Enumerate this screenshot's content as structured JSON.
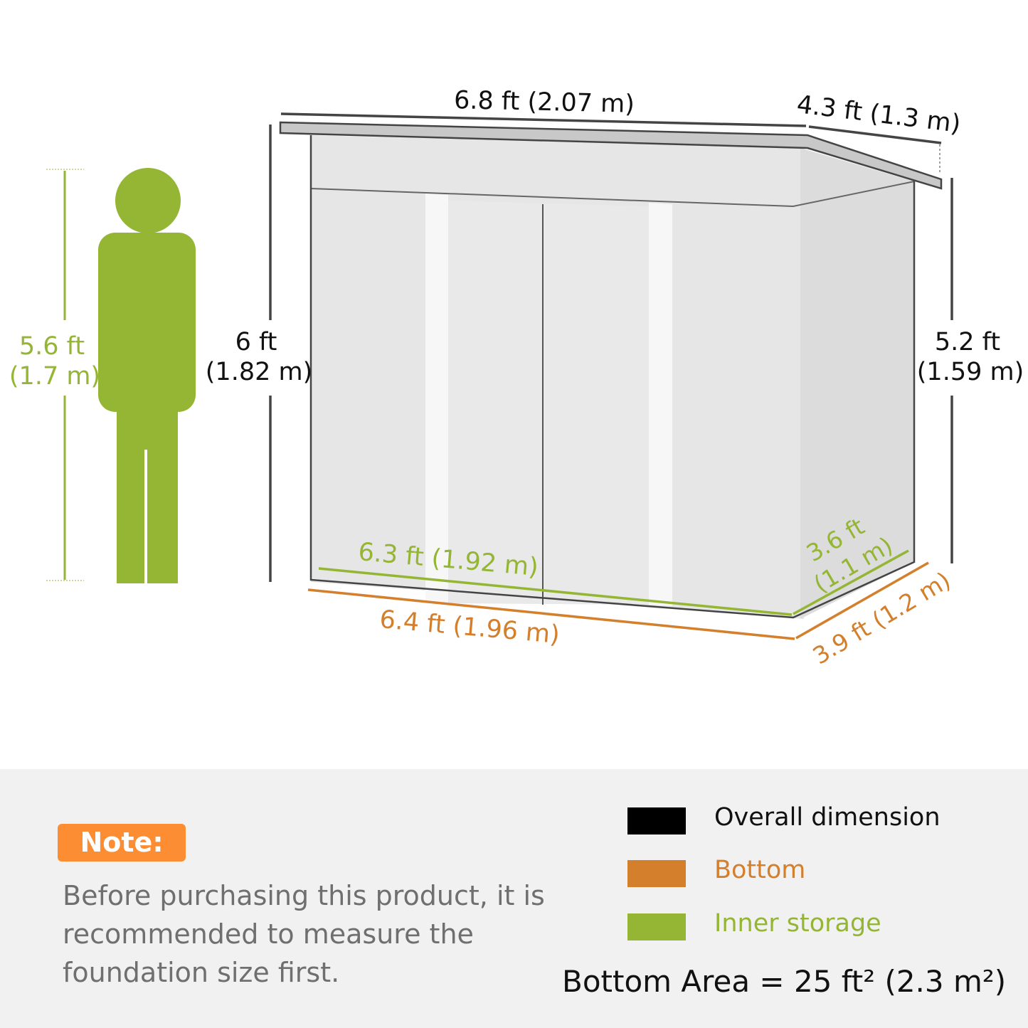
{
  "colors": {
    "overall": "#000000",
    "bottom": "#d47f2c",
    "inner": "#95b534",
    "note": "#fd8d32",
    "panel": "#f1f1f1"
  },
  "person": {
    "height_ft": "5.6 ft",
    "height_m": "(1.7 m)"
  },
  "shed": {
    "overall_width": "6.8 ft (2.07 m)",
    "overall_depth": "4.3 ft (1.3 m)",
    "front_height_ft": "6 ft",
    "front_height_m": "(1.82 m)",
    "back_height_ft": "5.2 ft",
    "back_height_m": "(1.59 m)",
    "inner_width": "6.3 ft (1.92 m)",
    "inner_depth_ft": "3.6 ft",
    "inner_depth_m": "(1.1 m)",
    "bottom_width": "6.4 ft (1.96 m)",
    "bottom_depth": "3.9 ft (1.2 m)"
  },
  "note": {
    "badge": "Note:",
    "text": "Before purchasing this product, it is recommended to measure the foundation size first."
  },
  "legend": [
    {
      "label": "Overall dimension"
    },
    {
      "label": "Bottom"
    },
    {
      "label": "Inner storage"
    }
  ],
  "bottom_area": "Bottom Area = 25 ft² (2.3 m²)"
}
